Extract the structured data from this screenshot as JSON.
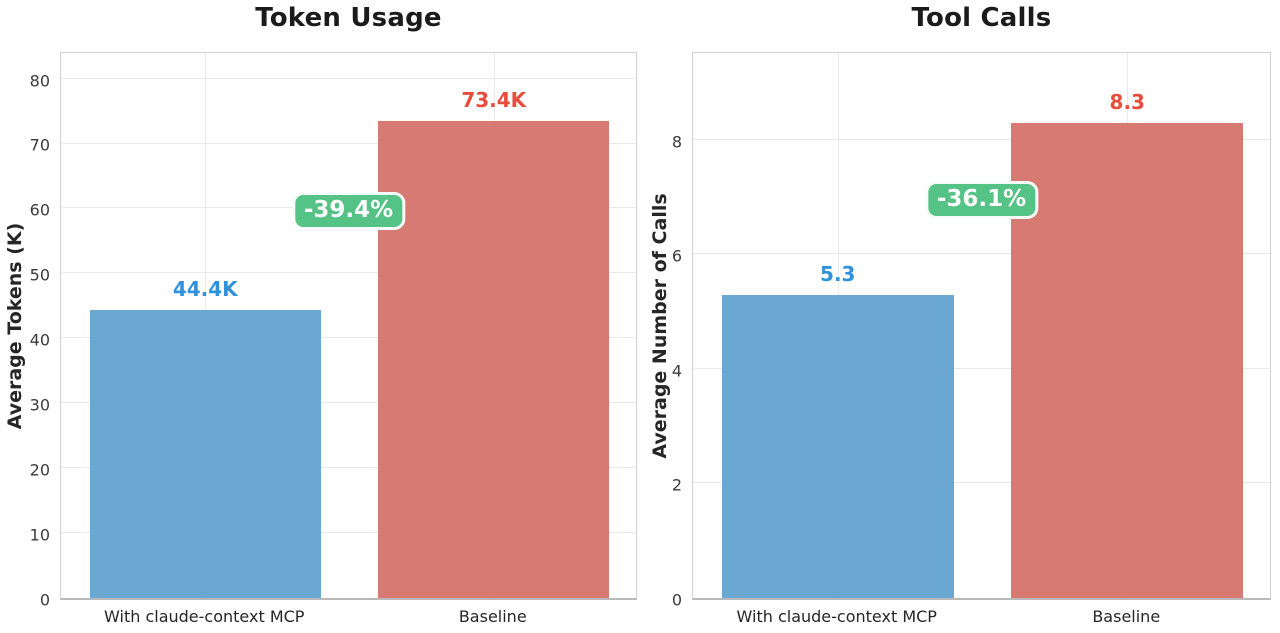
{
  "figure": {
    "background": "#ffffff"
  },
  "chart_data": [
    {
      "type": "bar",
      "title": "Token Usage",
      "xlabel": "",
      "ylabel": "Average Tokens (K)",
      "categories": [
        "With claude-context MCP",
        "Baseline"
      ],
      "values": [
        44.4,
        73.4
      ],
      "value_labels": [
        "44.4K",
        "73.4K"
      ],
      "bar_colors": [
        "#5fa0ce",
        "#d47167"
      ],
      "value_label_colors": [
        "#3191db",
        "#e74c3c"
      ],
      "yticks": [
        0,
        10,
        20,
        30,
        40,
        50,
        60,
        70,
        80
      ],
      "ylim": [
        0,
        84.4
      ],
      "grid": "on",
      "legend": "none",
      "annotation": {
        "label": "-39.4%",
        "y": 60,
        "bg_color": "#55c286",
        "text_color": "#ffffff"
      }
    },
    {
      "type": "bar",
      "title": "Tool Calls",
      "xlabel": "",
      "ylabel": "Average Number of Calls",
      "categories": [
        "With claude-context MCP",
        "Baseline"
      ],
      "values": [
        5.3,
        8.3
      ],
      "value_labels": [
        "5.3",
        "8.3"
      ],
      "bar_colors": [
        "#5fa0ce",
        "#d47167"
      ],
      "value_label_colors": [
        "#3191db",
        "#e74c3c"
      ],
      "yticks": [
        0,
        2,
        4,
        6,
        8
      ],
      "ylim": [
        0,
        9.57
      ],
      "grid": "on",
      "legend": "none",
      "annotation": {
        "label": "-36.1%",
        "y": 7,
        "bg_color": "#55c286",
        "text_color": "#ffffff"
      }
    }
  ]
}
